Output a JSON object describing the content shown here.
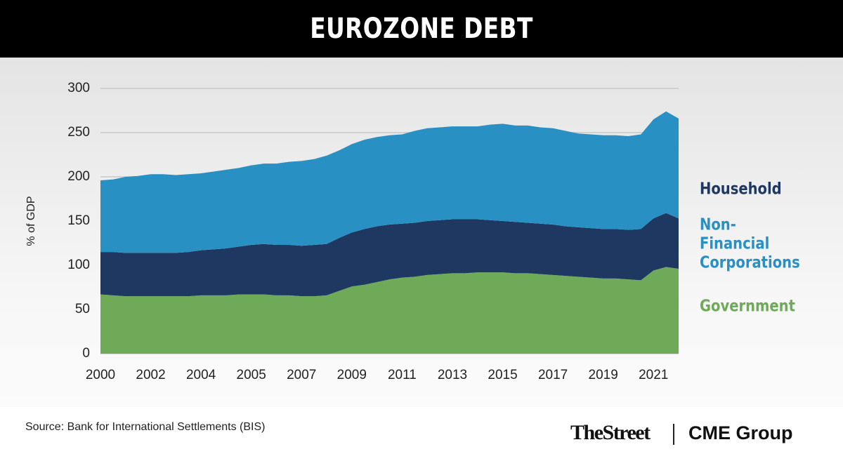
{
  "chart_data": {
    "type": "stacked-area",
    "title": "EUROZONE DEBT",
    "y_label": "% of GDP",
    "source": "Source: Bank for International Settlements (BIS)",
    "logos": [
      "TheStreet",
      "CME Group"
    ],
    "categories": [
      "2000",
      null,
      null,
      null,
      "2002",
      null,
      null,
      null,
      "2004",
      null,
      null,
      null,
      "2005",
      null,
      null,
      null,
      "2007",
      null,
      null,
      null,
      "2009",
      null,
      null,
      null,
      "2011",
      null,
      null,
      null,
      "2013",
      null,
      null,
      null,
      "2015",
      null,
      null,
      null,
      "2017",
      null,
      null,
      null,
      "2019",
      null,
      null,
      null,
      "2021",
      null,
      null
    ],
    "series": [
      {
        "name": "Government",
        "color": "#6eaa58",
        "values": [
          67,
          66,
          65,
          65,
          65,
          65,
          65,
          65,
          66,
          66,
          66,
          67,
          67,
          67,
          66,
          66,
          65,
          65,
          66,
          71,
          76,
          78,
          81,
          84,
          86,
          87,
          89,
          90,
          91,
          91,
          92,
          92,
          92,
          91,
          91,
          90,
          89,
          88,
          87,
          86,
          85,
          85,
          84,
          83,
          94,
          98,
          96
        ]
      },
      {
        "name": "Household",
        "color": "#1e3862",
        "values": [
          48,
          49,
          49,
          49,
          49,
          49,
          49,
          50,
          51,
          52,
          53,
          54,
          56,
          57,
          57,
          57,
          57,
          58,
          58,
          60,
          61,
          63,
          63,
          62,
          61,
          61,
          61,
          61,
          61,
          61,
          60,
          59,
          58,
          58,
          57,
          57,
          57,
          56,
          56,
          56,
          56,
          56,
          56,
          58,
          59,
          61,
          57
        ]
      },
      {
        "name": "Non-Financial Corporations",
        "color": "#2990c3",
        "values": [
          81,
          82,
          86,
          87,
          89,
          89,
          88,
          88,
          87,
          88,
          89,
          89,
          90,
          91,
          92,
          94,
          96,
          97,
          100,
          99,
          100,
          101,
          101,
          101,
          101,
          104,
          105,
          105,
          105,
          105,
          105,
          108,
          110,
          109,
          110,
          109,
          109,
          108,
          106,
          106,
          106,
          106,
          106,
          107,
          112,
          115,
          113
        ]
      }
    ],
    "ylim": [
      0,
      300
    ],
    "yticks": [
      0,
      50,
      100,
      150,
      200,
      250,
      300
    ],
    "grid": true
  }
}
